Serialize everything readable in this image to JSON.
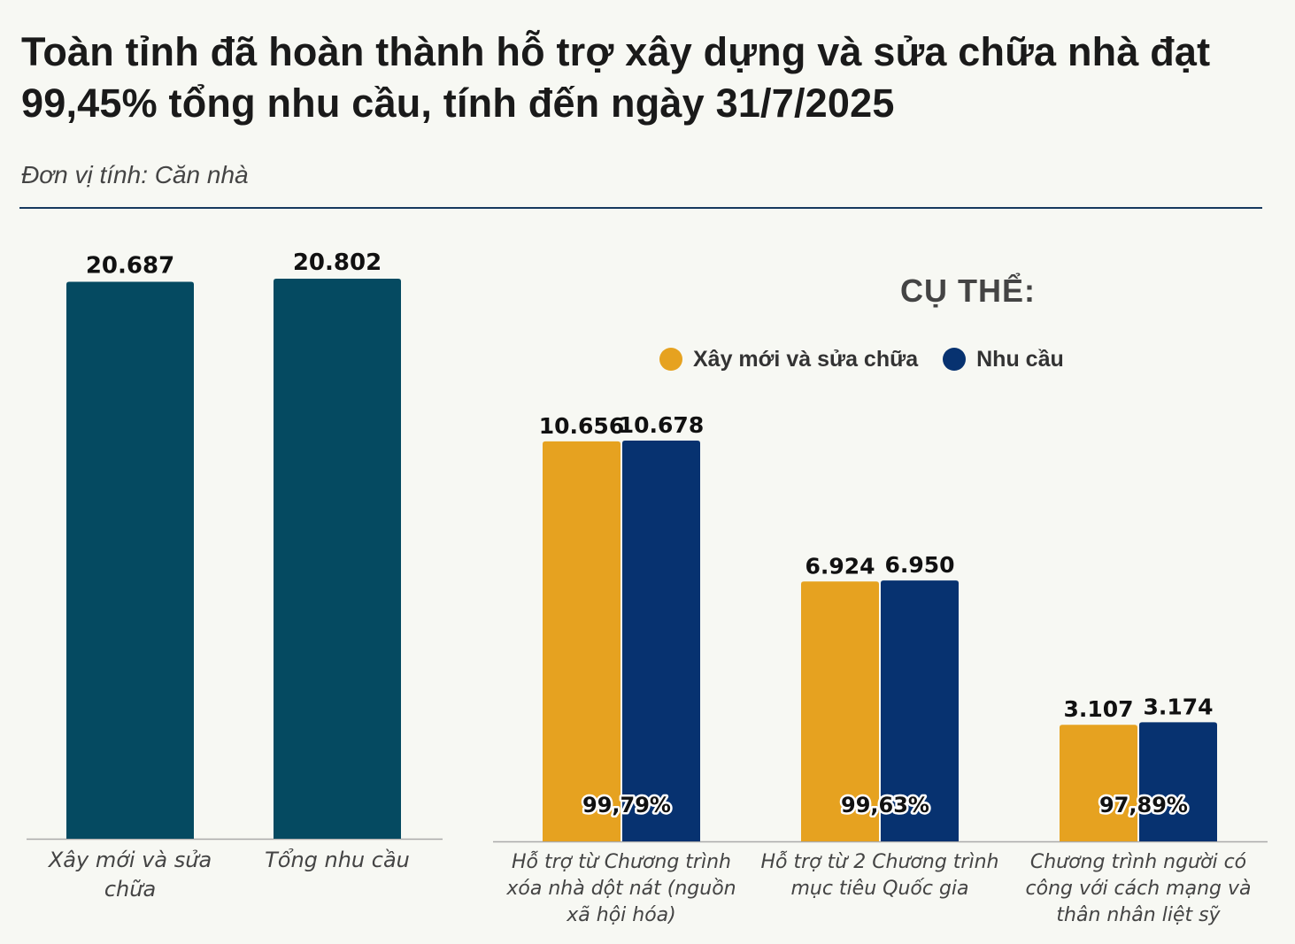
{
  "title": "Toàn tỉnh đã hoàn thành hỗ trợ xây dựng và sửa chữa nhà đạt 99,45% tổng nhu cầu, tính đến ngày 31/7/2025",
  "unit": "Đơn vị tính: Căn nhà",
  "subtitle": "CỤ THỂ:",
  "colors": {
    "total_bar": "#054a61",
    "built": "#e6a220",
    "demand": "#073270",
    "axis": "#aaaaaa"
  },
  "legend": [
    {
      "label": "Xây mới và sửa chữa",
      "color": "#e6a220"
    },
    {
      "label": "Nhu cầu",
      "color": "#073270"
    }
  ],
  "chart_data": [
    {
      "type": "bar",
      "title": "",
      "categories": [
        [
          "Xây mới và sửa",
          "chữa"
        ],
        [
          "Tổng nhu cầu"
        ]
      ],
      "values": [
        20687,
        20802
      ],
      "labels": [
        "20.687",
        "20.802"
      ],
      "ylim": [
        0,
        20802
      ]
    },
    {
      "type": "bar",
      "title": "CỤ THỂ:",
      "categories": [
        [
          "Hỗ trợ từ Chương trình",
          "xóa nhà dột nát (nguồn",
          "xã hội hóa)"
        ],
        [
          "Hỗ trợ từ 2 Chương trình",
          "mục tiêu Quốc gia"
        ],
        [
          "Chương trình người có",
          "công với cách mạng và",
          "thân nhân liệt sỹ"
        ]
      ],
      "series": [
        {
          "name": "Xây mới và sửa chữa",
          "values": [
            10656,
            6924,
            3107
          ],
          "labels": [
            "10.656",
            "6.924",
            "3.107"
          ]
        },
        {
          "name": "Nhu cầu",
          "values": [
            10678,
            6950,
            3174
          ],
          "labels": [
            "10.678",
            "6.950",
            "3.174"
          ]
        }
      ],
      "percent_labels": [
        "99,79%",
        "99,63%",
        "97,89%"
      ],
      "ylim": [
        0,
        10678
      ]
    }
  ]
}
